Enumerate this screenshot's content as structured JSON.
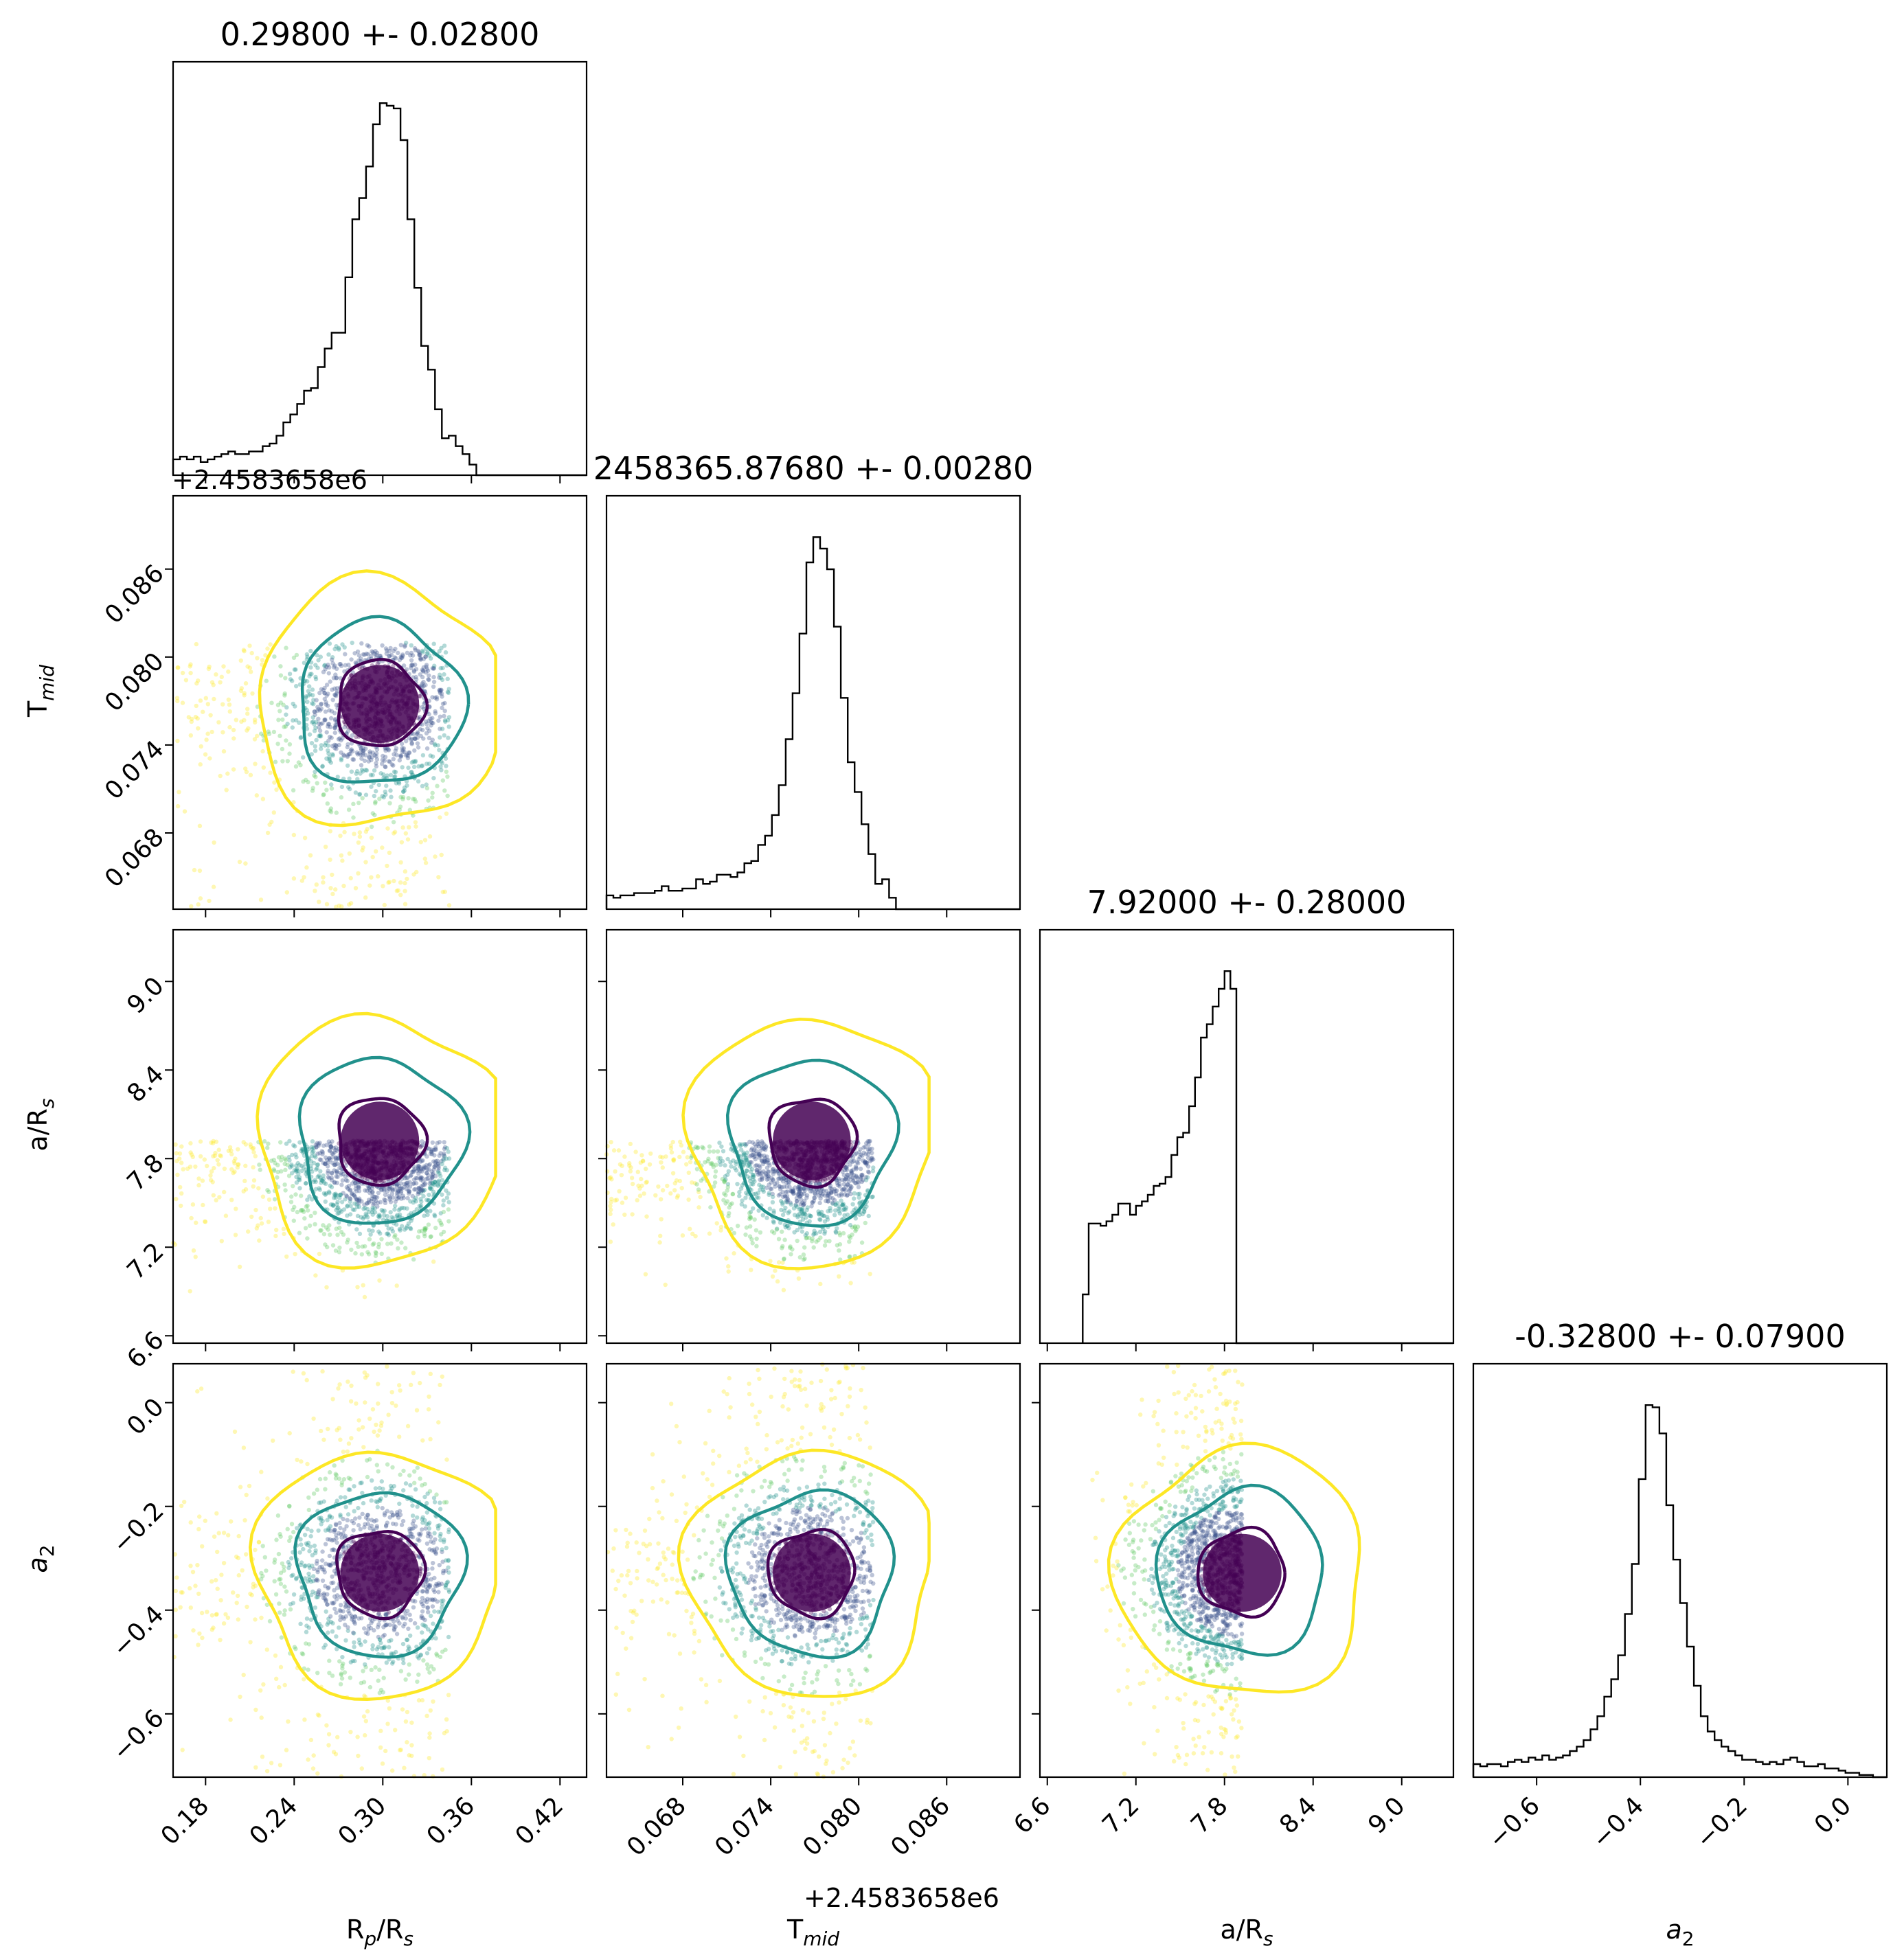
{
  "chart_data": {
    "type": "corner",
    "parameters": [
      {
        "key": "rp",
        "xlabel_main": "R",
        "xlabel_sub": "p",
        "xlabel_tail": "/R",
        "xlabel_sub2": "s"
      },
      {
        "key": "tmid",
        "xlabel_main": "T",
        "xlabel_sub": "mid",
        "xlabel_tail": "",
        "xlabel_sub2": ""
      },
      {
        "key": "ars",
        "xlabel_main": "a/R",
        "xlabel_sub": "s",
        "xlabel_tail": "",
        "xlabel_sub2": ""
      },
      {
        "key": "a2",
        "xlabel_main": "a",
        "xlabel_sub": "2",
        "xlabel_tail": "",
        "xlabel_sub2": ""
      }
    ],
    "titles": [
      "0.29800 +- 0.02800",
      "2458365.87680 +- 0.00280",
      "7.92000 +- 0.28000",
      "-0.32800 +- 0.07900"
    ],
    "offset_labels": [
      "+2.4583658e6",
      "+2.4583658e6"
    ],
    "ranges": {
      "rp": [
        0.158,
        0.438
      ],
      "tmid": [
        0.0628,
        0.091
      ],
      "ars": [
        6.55,
        9.35
      ],
      "a2": [
        -0.722,
        0.075
      ]
    },
    "ticks": {
      "rp": [
        "0.18",
        "0.24",
        "0.30",
        "0.36",
        "0.42"
      ],
      "tmid": [
        "0.068",
        "0.074",
        "0.080",
        "0.086"
      ],
      "ars": [
        "6.6",
        "7.2",
        "7.8",
        "8.4",
        "9.0"
      ],
      "a2": [
        "-0.6",
        "-0.4",
        "-0.2",
        "0.0"
      ]
    },
    "tick_values": {
      "rp": [
        0.18,
        0.24,
        0.3,
        0.36,
        0.42
      ],
      "tmid": [
        0.068,
        0.074,
        0.08,
        0.086
      ],
      "ars": [
        6.6,
        7.2,
        7.8,
        8.4,
        9.0
      ],
      "a2": [
        -0.6,
        -0.4,
        -0.2,
        0.0
      ]
    },
    "sample_bounds": {
      "rp": [
        0.158,
        0.345
      ],
      "tmid": [
        0.0628,
        0.081
      ],
      "ars": [
        6.84,
        7.92
      ],
      "a2": [
        -0.722,
        0.075
      ]
    },
    "means": {
      "rp": 0.298,
      "tmid": 0.0768,
      "ars": 7.92,
      "a2": -0.328
    },
    "sigmas": {
      "rp": 0.028,
      "tmid": 0.0028,
      "ars": 0.28,
      "a2": 0.079
    },
    "histograms": {
      "rp": [
        6,
        7,
        6,
        7,
        5,
        6,
        7,
        8,
        9,
        8,
        8,
        9,
        9,
        11,
        12,
        15,
        20,
        23,
        27,
        32,
        33,
        41,
        48,
        54,
        54,
        75,
        97,
        105,
        117,
        133,
        141,
        140,
        139,
        127,
        97,
        71,
        49,
        40,
        25,
        14,
        15,
        11,
        8,
        4,
        0,
        0,
        0,
        0,
        0,
        0,
        0,
        0,
        0,
        0,
        0,
        0,
        0,
        0,
        0,
        0
      ],
      "tmid": [
        6,
        5,
        6,
        6,
        7,
        7,
        7,
        8,
        10,
        8,
        8,
        9,
        9,
        13,
        11,
        12,
        15,
        15,
        14,
        16,
        20,
        21,
        28,
        32,
        41,
        54,
        74,
        94,
        120,
        151,
        162,
        157,
        148,
        123,
        92,
        64,
        51,
        37,
        24,
        11,
        13,
        5,
        0,
        0,
        0,
        0,
        0,
        0,
        0,
        0,
        0,
        0,
        0,
        0,
        0,
        0,
        0,
        0,
        0,
        0
      ],
      "ars": [
        0,
        0,
        0,
        0,
        0,
        0,
        0,
        0,
        0,
        0,
        0,
        0,
        0,
        0,
        0,
        0,
        0,
        0,
        0,
        0,
        0,
        0,
        0,
        0,
        0,
        0,
        0,
        0,
        0,
        0,
        0,
        0,
        0,
        0,
        0,
        0,
        0,
        0,
        0,
        0,
        0,
        0,
        0,
        0,
        0,
        0,
        0,
        0,
        0,
        0,
        0,
        0,
        0,
        0,
        0,
        0,
        0,
        0,
        0,
        0
      ],
      "a2": [
        6,
        5,
        6,
        6,
        5,
        7,
        8,
        7,
        9,
        8,
        10,
        8,
        9,
        10,
        12,
        14,
        17,
        22,
        28,
        37,
        45,
        56,
        75,
        98,
        137,
        171,
        170,
        158,
        125,
        100,
        80,
        60,
        42,
        28,
        21,
        17,
        14,
        12,
        10,
        8,
        8,
        7,
        6,
        7,
        6,
        8,
        9,
        7,
        5,
        5,
        6,
        4,
        4,
        3,
        2,
        2,
        1,
        1,
        0,
        0
      ]
    },
    "ars_hist_edges": [
      6.84,
      6.88,
      6.92,
      6.96,
      7.0,
      7.04,
      7.08,
      7.12,
      7.16,
      7.2,
      7.24,
      7.28,
      7.32,
      7.36,
      7.4,
      7.44,
      7.48,
      7.52,
      7.56,
      7.6,
      7.64,
      7.68,
      7.72,
      7.76,
      7.8,
      7.84,
      7.88,
      7.92
    ],
    "ars_hist_counts": [
      22,
      54,
      54,
      53,
      55,
      58,
      63,
      63,
      58,
      62,
      64,
      67,
      71,
      72,
      75,
      85,
      93,
      95,
      107,
      120,
      138,
      144,
      152,
      160,
      168,
      160,
      0
    ],
    "contour_colors": [
      "#440154",
      "#21918c",
      "#fde725"
    ],
    "scatter_colors": [
      "#440154",
      "#3b528b",
      "#21918c",
      "#5ec962",
      "#fde725"
    ]
  }
}
